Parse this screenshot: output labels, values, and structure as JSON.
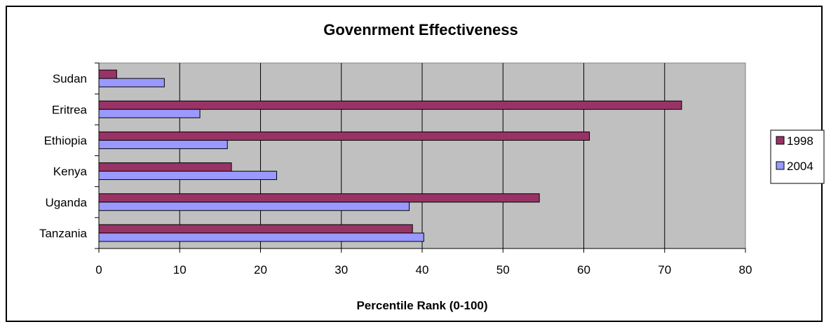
{
  "chart_data": {
    "type": "bar",
    "orientation": "horizontal",
    "title": "Govenrment Effectiveness",
    "xlabel": "Percentile Rank (0-100)",
    "ylabel": "",
    "categories": [
      "Sudan",
      "Eritrea",
      "Ethiopia",
      "Kenya",
      "Uganda",
      "Tanzania"
    ],
    "series": [
      {
        "name": "1998",
        "color": "#993366",
        "values": [
          2.2,
          72.1,
          60.7,
          16.4,
          54.5,
          38.8
        ]
      },
      {
        "name": "2004",
        "color": "#9999FF",
        "values": [
          8.1,
          12.5,
          15.9,
          22.0,
          38.4,
          40.2
        ]
      }
    ],
    "xlim": [
      0,
      80
    ],
    "xticks": [
      "0",
      "10",
      "20",
      "30",
      "40",
      "50",
      "60",
      "70",
      "80"
    ],
    "grid": true,
    "plot_background": "#C0C0C0",
    "legend_position": "right"
  }
}
